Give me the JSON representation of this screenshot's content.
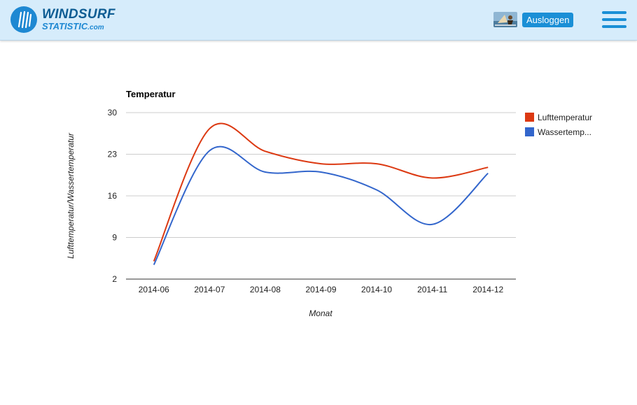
{
  "header": {
    "logo_line1": "WINDSURF",
    "logo_line2": "STATISTIC",
    "logo_suffix": ".com",
    "logout_label": "Ausloggen",
    "menu_icon": "hamburger-menu-icon",
    "avatar_icon": "user-avatar-icon"
  },
  "colors": {
    "header_bg": "#d6ecfb",
    "accent": "#1a8fd6",
    "series_air": "#dc3912",
    "series_water": "#3366cc"
  },
  "chart_data": {
    "type": "line",
    "title": "Temperatur",
    "xlabel": "Monat",
    "ylabel": "Lufttemperatur/Wassertemperatur",
    "categories": [
      "2014-06",
      "2014-07",
      "2014-08",
      "2014-09",
      "2014-10",
      "2014-11",
      "2014-12"
    ],
    "y_ticks": [
      "30",
      "23",
      "16",
      "9",
      "2"
    ],
    "ylim": [
      2,
      30
    ],
    "grid": true,
    "legend_position": "right",
    "series": [
      {
        "name": "Lufttemperatur",
        "legend_label": "Lufttemperatur",
        "color": "#dc3912",
        "values": [
          5.0,
          27.3,
          23.5,
          21.4,
          21.4,
          19.0,
          20.8
        ]
      },
      {
        "name": "Wassertemperatur",
        "legend_label": "Wassertemp...",
        "color": "#3366cc",
        "values": [
          4.4,
          23.6,
          20.0,
          20.0,
          17.0,
          11.2,
          19.8
        ]
      }
    ]
  }
}
